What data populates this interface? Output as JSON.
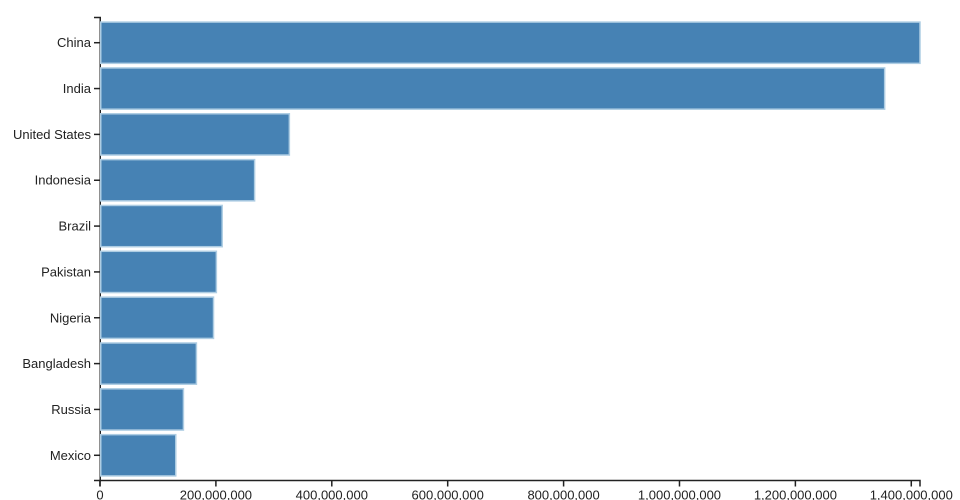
{
  "chart_data": {
    "type": "bar",
    "orientation": "horizontal",
    "title": "",
    "xlabel": "",
    "ylabel": "",
    "grid": false,
    "legend": null,
    "xlim": [
      0,
      1415045928
    ],
    "categories": [
      "China",
      "India",
      "United States",
      "Indonesia",
      "Brazil",
      "Pakistan",
      "Nigeria",
      "Bangladesh",
      "Russia",
      "Mexico"
    ],
    "values": [
      1415045928,
      1354051854,
      326766748,
      266794980,
      210867954,
      200813818,
      195875237,
      166368149,
      143964709,
      130759074
    ],
    "x_tick_values": [
      0,
      200000000,
      400000000,
      600000000,
      800000000,
      1000000000,
      1200000000,
      1400000000
    ],
    "x_tick_labels": [
      "0",
      "200,000,000",
      "400,000,000",
      "600,000,000",
      "800,000,000",
      "1,000,000,000",
      "1,200,000,000",
      "1,400,000,000"
    ],
    "colors": {
      "bar_fill": "#4682b4",
      "bar_stroke": "#aecde3",
      "axis": "#222222",
      "text": "#222222",
      "background": "#ffffff"
    }
  }
}
